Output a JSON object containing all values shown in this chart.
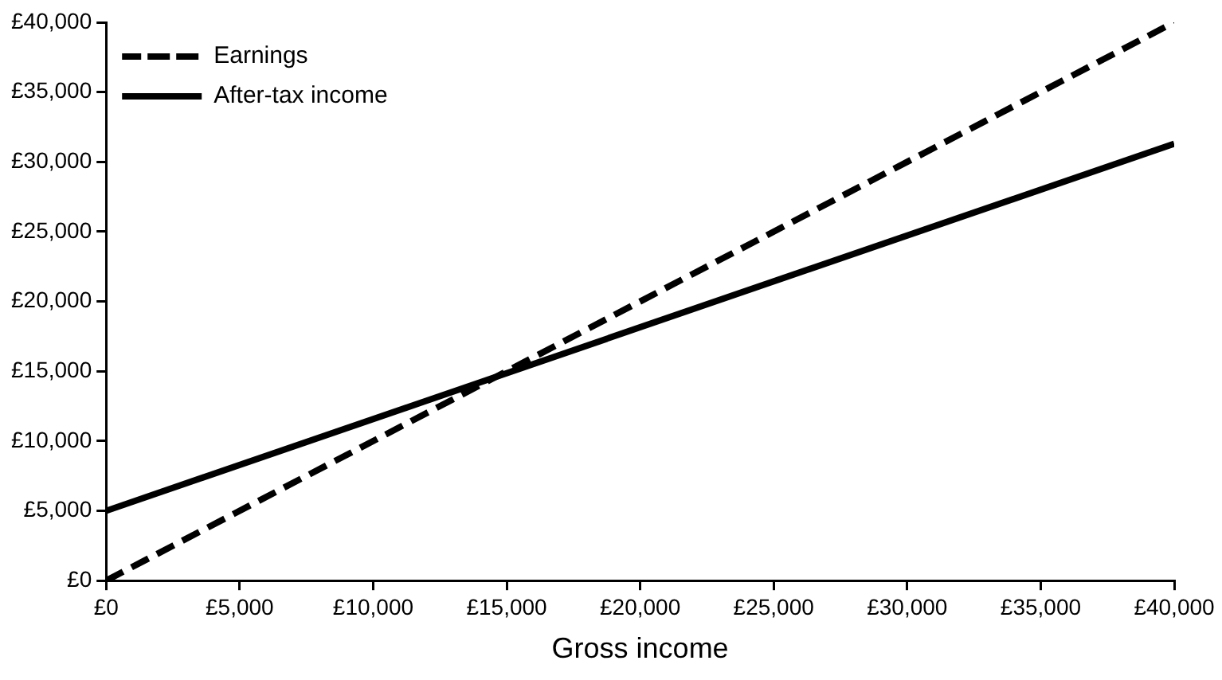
{
  "chart_data": {
    "type": "line",
    "xlabel": "Gross income",
    "x": [
      0,
      40000
    ],
    "series": [
      {
        "name": "Earnings",
        "color": "#000000",
        "values": [
          0,
          40000
        ],
        "line_style": "dashed"
      },
      {
        "name": "After-tax income",
        "color": "#000000",
        "values": [
          5000,
          31300
        ],
        "line_style": "solid"
      }
    ],
    "xlim": [
      0,
      40000
    ],
    "ylim": [
      0,
      40000
    ],
    "xticks": [
      {
        "value": 0,
        "label": "£0"
      },
      {
        "value": 5000,
        "label": "£5,000"
      },
      {
        "value": 10000,
        "label": "£10,000"
      },
      {
        "value": 15000,
        "label": "£15,000"
      },
      {
        "value": 20000,
        "label": "£20,000"
      },
      {
        "value": 25000,
        "label": "£25,000"
      },
      {
        "value": 30000,
        "label": "£30,000"
      },
      {
        "value": 35000,
        "label": "£35,000"
      },
      {
        "value": 40000,
        "label": "£40,000"
      }
    ],
    "yticks": [
      {
        "value": 0,
        "label": "£0"
      },
      {
        "value": 5000,
        "label": "£5,000"
      },
      {
        "value": 10000,
        "label": "£10,000"
      },
      {
        "value": 15000,
        "label": "£15,000"
      },
      {
        "value": 20000,
        "label": "£20,000"
      },
      {
        "value": 25000,
        "label": "£25,000"
      },
      {
        "value": 30000,
        "label": "£30,000"
      },
      {
        "value": 35000,
        "label": "£35,000"
      },
      {
        "value": 40000,
        "label": "£40,000"
      }
    ],
    "grid": false,
    "legend": "top",
    "marker": "none"
  }
}
